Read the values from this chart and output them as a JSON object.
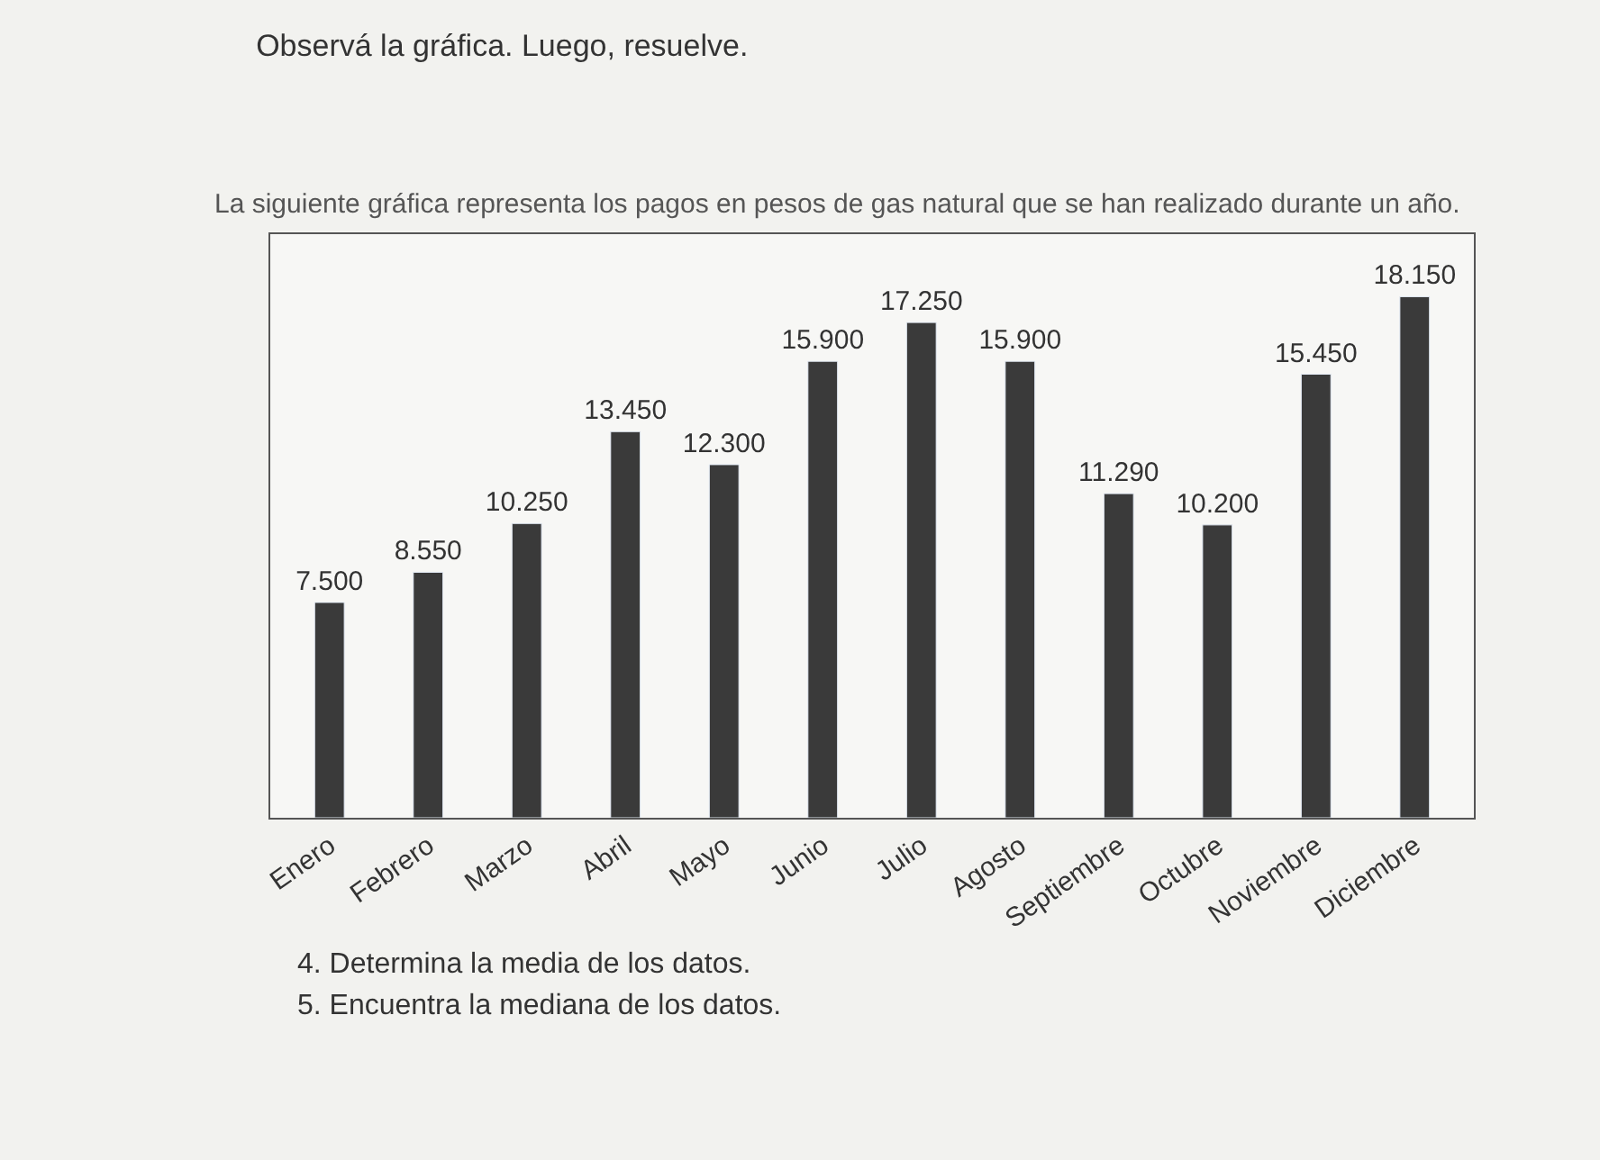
{
  "chart_data": {
    "type": "bar",
    "title": "Observá la gráfica. Luego, resuelve.",
    "subtitle": "La siguiente gráfica representa los pagos en pesos de gas natural que se han realizado durante un año.",
    "categories": [
      "Enero",
      "Febrero",
      "Marzo",
      "Abril",
      "Mayo",
      "Junio",
      "Julio",
      "Agosto",
      "Septiembre",
      "Octubre",
      "Noviembre",
      "Diciembre"
    ],
    "values": [
      7500,
      8550,
      10250,
      13450,
      12300,
      15900,
      17250,
      15900,
      11290,
      10200,
      15450,
      18150
    ],
    "value_labels": [
      "7.500",
      "8.550",
      "10.250",
      "13.450",
      "12.300",
      "15.900",
      "17.250",
      "15.900",
      "11.290",
      "10.200",
      "15.450",
      "18.150"
    ],
    "color": "#3a3a3a",
    "tick_labels": "x",
    "grid": false,
    "legend": false,
    "annotations": [
      "4. Determina la media de los datos.",
      "5. Encuentra la mediana de los datos."
    ]
  }
}
